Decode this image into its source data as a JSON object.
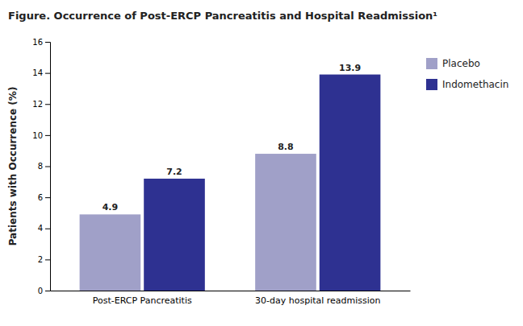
{
  "chart_data": {
    "type": "bar",
    "title": "Figure. Occurrence of Post-ERCP Pancreatitis and Hospital Readmission¹",
    "categories": [
      "Post-ERCP Pancreatitis",
      "30-day hospital readmission"
    ],
    "series": [
      {
        "name": "Placebo",
        "color": "#a0a0c8",
        "values": [
          4.9,
          8.8
        ]
      },
      {
        "name": "Indomethacin",
        "color": "#2e3191",
        "values": [
          7.2,
          13.9
        ]
      }
    ],
    "ylabel": "Patients with Occurrence (%)",
    "ylim": [
      0,
      16
    ],
    "yticks": [
      0,
      2,
      4,
      6,
      8,
      10,
      12,
      14,
      16
    ],
    "data_labels": true,
    "grid": false,
    "legend": "right"
  }
}
